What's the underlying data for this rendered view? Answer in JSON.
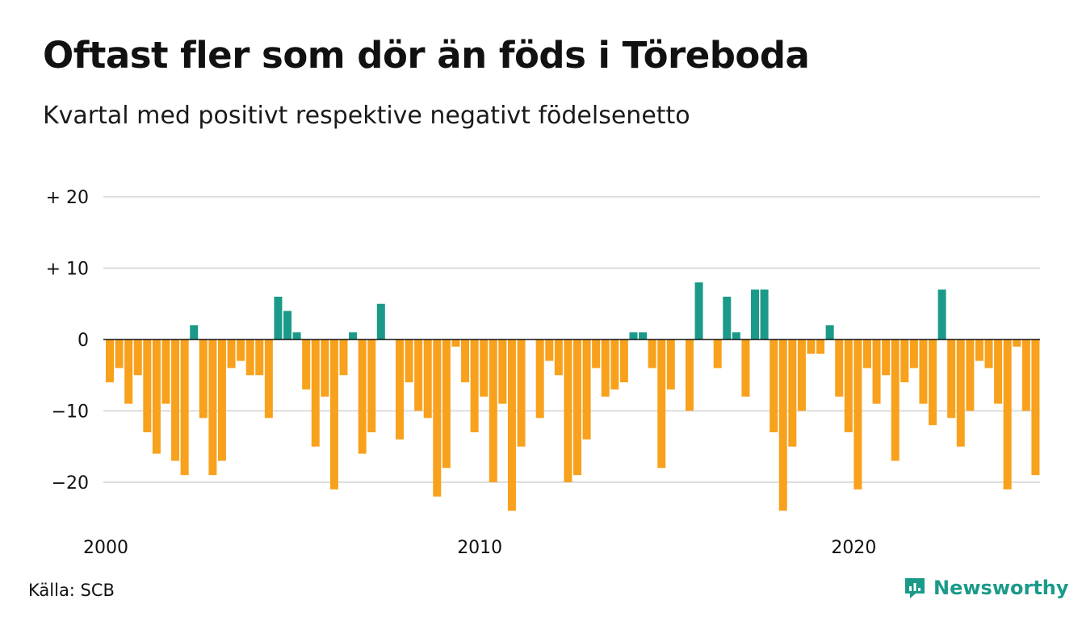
{
  "title": "Oftast fler som dör än föds i Töreboda",
  "subtitle": "Kvartal med positivt respektive negativt födelsenetto",
  "source": "Källa: SCB",
  "brand": {
    "name": "Newsworthy",
    "icon": "newsworthy-logo-icon"
  },
  "colors": {
    "positive": "#1b9a8a",
    "negative": "#f8a11d",
    "grid": "#dddddd",
    "zero": "#111111"
  },
  "chart_data": {
    "type": "bar",
    "xlabel": "",
    "ylabel": "",
    "ylim": [
      -26,
      22
    ],
    "yticks": [
      20,
      10,
      0,
      -10,
      -20
    ],
    "ytick_labels": [
      "+ 20",
      "+ 10",
      "0",
      "−10",
      "−20"
    ],
    "grid": true,
    "x_tick_labels": [
      {
        "label": "2000",
        "quarter_index": 0
      },
      {
        "label": "2010",
        "quarter_index": 40
      },
      {
        "label": "2020",
        "quarter_index": 80
      }
    ],
    "first_quarter": "2000 Q1",
    "values": [
      -6,
      -4,
      -9,
      -5,
      -13,
      -16,
      -9,
      -17,
      -19,
      2,
      -11,
      -19,
      -17,
      -4,
      -3,
      -5,
      -5,
      -11,
      6,
      4,
      1,
      -7,
      -15,
      -8,
      -21,
      -5,
      1,
      -16,
      -13,
      5,
      0,
      -14,
      -6,
      -10,
      -11,
      -22,
      -18,
      -1,
      -6,
      -13,
      -8,
      -20,
      -9,
      -24,
      -15,
      0,
      -11,
      -3,
      -5,
      -20,
      -19,
      -14,
      -4,
      -8,
      -7,
      -6,
      1,
      1,
      -4,
      -18,
      -7,
      0,
      -10,
      8,
      0,
      -4,
      6,
      1,
      -8,
      7,
      7,
      -13,
      -24,
      -15,
      -10,
      -2,
      -2,
      2,
      -8,
      -13,
      -21,
      -4,
      -9,
      -5,
      -17,
      -6,
      -4,
      -9,
      -12,
      7,
      -11,
      -15,
      -10,
      -3,
      -4,
      -9,
      -21,
      -1,
      -10,
      -19
    ]
  }
}
